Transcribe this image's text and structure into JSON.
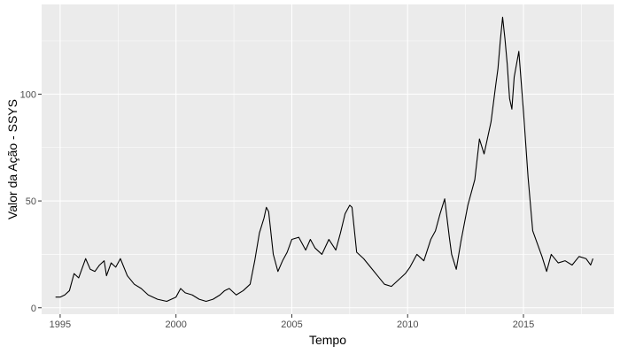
{
  "chart_data": {
    "type": "line",
    "xlabel": "Tempo",
    "ylabel": "Valor da Ação - SSYS",
    "xlim": [
      1994.2,
      2018.9
    ],
    "ylim": [
      -3,
      142
    ],
    "x_ticks": [
      1995,
      2000,
      2005,
      2010,
      2015
    ],
    "x_minor_ticks": [
      1997.5,
      2002.5,
      2007.5,
      2012.5,
      2017.5
    ],
    "y_ticks": [
      0,
      50,
      100
    ],
    "y_minor_ticks": [
      25,
      75,
      125
    ],
    "grid": true,
    "colors": {
      "panel": "#ebebeb",
      "grid": "#ffffff",
      "line": "#000000"
    },
    "series": [
      {
        "x": [
          1994.8,
          1995.0,
          1995.2,
          1995.4,
          1995.6,
          1995.8,
          1996.0,
          1996.1,
          1996.3,
          1996.5,
          1996.7,
          1996.9,
          1997.0,
          1997.2,
          1997.3,
          1997.4,
          1997.6,
          1997.9,
          1998.2,
          1998.5,
          1998.8,
          1999.2,
          1999.6,
          2000.0,
          2000.2,
          2000.4,
          2000.7,
          2001.0,
          2001.3,
          2001.6,
          2001.9,
          2002.1,
          2002.3,
          2002.6,
          2002.9,
          2003.2,
          2003.4,
          2003.6,
          2003.8,
          2003.9,
          2004.0,
          2004.2,
          2004.4,
          2004.6,
          2004.8,
          2005.0,
          2005.3,
          2005.6,
          2005.8,
          2006.0,
          2006.3,
          2006.6,
          2006.9,
          2007.1,
          2007.3,
          2007.5,
          2007.6,
          2007.8,
          2008.1,
          2008.4,
          2008.7,
          2009.0,
          2009.3,
          2009.6,
          2009.9,
          2010.1,
          2010.4,
          2010.7,
          2011.0,
          2011.2,
          2011.4,
          2011.6,
          2011.8,
          2011.9,
          2012.1,
          2012.3,
          2012.6,
          2012.9,
          2013.1,
          2013.3,
          2013.6,
          2013.8,
          2013.9,
          2014.0,
          2014.1,
          2014.2,
          2014.3,
          2014.4,
          2014.5,
          2014.6,
          2014.8,
          2015.0,
          2015.2,
          2015.4,
          2015.6,
          2015.8,
          2016.0,
          2016.2,
          2016.5,
          2016.8,
          2017.1,
          2017.4,
          2017.7,
          2017.9,
          2018.0
        ],
        "y": [
          5,
          5,
          6,
          8,
          16,
          14,
          20,
          23,
          18,
          17,
          20,
          22,
          15,
          21,
          20,
          19,
          23,
          15,
          11,
          9,
          6,
          4,
          3,
          5,
          9,
          7,
          6,
          4,
          3,
          4,
          6,
          8,
          9,
          6,
          8,
          11,
          22,
          35,
          42,
          47,
          45,
          25,
          17,
          22,
          26,
          32,
          33,
          27,
          32,
          28,
          25,
          32,
          27,
          35,
          44,
          48,
          47,
          26,
          23,
          19,
          15,
          11,
          10,
          13,
          16,
          19,
          25,
          22,
          32,
          36,
          44,
          51,
          33,
          25,
          18,
          31,
          48,
          60,
          79,
          72,
          87,
          104,
          112,
          125,
          136,
          126,
          114,
          98,
          93,
          108,
          120,
          92,
          61,
          36,
          30,
          24,
          17,
          25,
          21,
          22,
          20,
          24,
          23,
          20,
          23
        ]
      }
    ]
  }
}
